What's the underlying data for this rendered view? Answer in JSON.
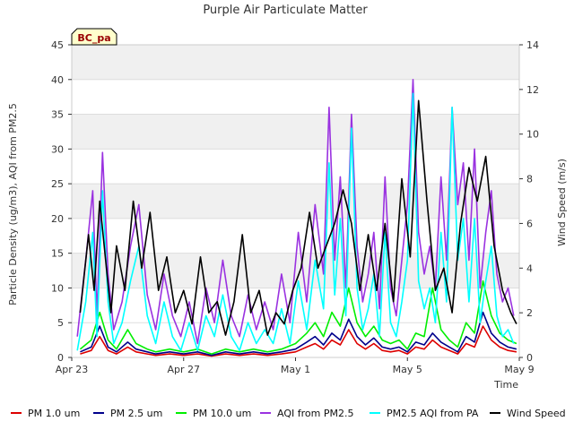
{
  "chart_data": {
    "type": "line",
    "title": "Purple Air Particulate Matter",
    "xlabel": "Time",
    "ylabel": "Particle Density (ug/m3), AQI from PM2.5",
    "y2label": "Wind Speed (m/s)",
    "badge": "BC_pa",
    "xlim": [
      0,
      16
    ],
    "ylim": [
      0,
      45
    ],
    "y2lim": [
      0,
      14
    ],
    "x_ticks": [
      {
        "value": 0,
        "label": "Apr 23"
      },
      {
        "value": 4,
        "label": "Apr 27"
      },
      {
        "value": 8,
        "label": "May 1"
      },
      {
        "value": 12,
        "label": "May 5"
      },
      {
        "value": 16,
        "label": "May 9"
      }
    ],
    "y_ticks": [
      0,
      5,
      10,
      15,
      20,
      25,
      30,
      35,
      40,
      45
    ],
    "y2_ticks": [
      0,
      2,
      4,
      6,
      8,
      10,
      12,
      14
    ],
    "shaded_bands": [
      [
        10,
        15
      ],
      [
        20,
        25
      ],
      [
        30,
        35
      ],
      [
        40,
        45
      ]
    ],
    "series": [
      {
        "name": "PM 1.0 um",
        "axis": "left",
        "color": "#dd0000",
        "x": [
          0.3,
          0.7,
          1.0,
          1.3,
          1.6,
          2.0,
          2.3,
          2.7,
          3.0,
          3.5,
          4.0,
          4.5,
          5.0,
          5.5,
          6.0,
          6.5,
          7.0,
          7.5,
          8.0,
          8.4,
          8.7,
          9.0,
          9.3,
          9.6,
          9.9,
          10.2,
          10.5,
          10.8,
          11.1,
          11.4,
          11.7,
          12.0,
          12.3,
          12.6,
          12.9,
          13.2,
          13.5,
          13.8,
          14.1,
          14.4,
          14.7,
          15.0,
          15.3,
          15.6,
          15.9
        ],
        "y": [
          0.5,
          1.0,
          3.0,
          1.0,
          0.5,
          1.5,
          0.8,
          0.5,
          0.3,
          0.5,
          0.3,
          0.5,
          0.2,
          0.5,
          0.3,
          0.5,
          0.3,
          0.5,
          0.8,
          1.5,
          2.0,
          1.2,
          2.5,
          1.8,
          4.0,
          2.0,
          1.2,
          2.0,
          1.0,
          0.8,
          1.0,
          0.5,
          1.5,
          1.2,
          2.5,
          1.5,
          1.0,
          0.5,
          2.0,
          1.5,
          4.5,
          2.5,
          1.5,
          1.0,
          0.8
        ]
      },
      {
        "name": "PM 2.5 um",
        "axis": "left",
        "color": "#00008b",
        "x": [
          0.3,
          0.7,
          1.0,
          1.3,
          1.6,
          2.0,
          2.3,
          2.7,
          3.0,
          3.5,
          4.0,
          4.5,
          5.0,
          5.5,
          6.0,
          6.5,
          7.0,
          7.5,
          8.0,
          8.4,
          8.7,
          9.0,
          9.3,
          9.6,
          9.9,
          10.2,
          10.5,
          10.8,
          11.1,
          11.4,
          11.7,
          12.0,
          12.3,
          12.6,
          12.9,
          13.2,
          13.5,
          13.8,
          14.1,
          14.4,
          14.7,
          15.0,
          15.3,
          15.6,
          15.9
        ],
        "y": [
          0.8,
          1.5,
          4.5,
          1.5,
          0.8,
          2.2,
          1.2,
          0.8,
          0.5,
          0.8,
          0.5,
          0.8,
          0.3,
          0.8,
          0.5,
          0.8,
          0.5,
          0.8,
          1.2,
          2.2,
          3.0,
          1.8,
          3.5,
          2.5,
          5.5,
          3.0,
          1.8,
          2.8,
          1.5,
          1.2,
          1.5,
          0.8,
          2.2,
          1.8,
          3.5,
          2.2,
          1.5,
          0.8,
          3.0,
          2.2,
          6.5,
          3.5,
          2.2,
          1.5,
          1.2
        ]
      },
      {
        "name": "PM 10.0 um",
        "axis": "left",
        "color": "#00ee00",
        "x": [
          0.3,
          0.7,
          1.0,
          1.3,
          1.6,
          2.0,
          2.3,
          2.7,
          3.0,
          3.5,
          4.0,
          4.5,
          5.0,
          5.5,
          6.0,
          6.5,
          7.0,
          7.5,
          8.0,
          8.4,
          8.7,
          9.0,
          9.3,
          9.6,
          9.9,
          10.2,
          10.5,
          10.8,
          11.1,
          11.4,
          11.7,
          12.0,
          12.3,
          12.6,
          12.9,
          13.2,
          13.5,
          13.8,
          14.1,
          14.4,
          14.7,
          15.0,
          15.3,
          15.6,
          15.9
        ],
        "y": [
          1.2,
          2.5,
          6.5,
          2.5,
          1.2,
          4.0,
          2.0,
          1.2,
          0.8,
          1.2,
          0.8,
          1.2,
          0.5,
          1.2,
          0.8,
          1.2,
          0.8,
          1.2,
          2.0,
          3.5,
          5.0,
          3.0,
          6.5,
          4.5,
          10.0,
          5.0,
          3.0,
          4.5,
          2.5,
          2.0,
          2.5,
          1.2,
          3.5,
          3.0,
          10.0,
          4.0,
          2.5,
          1.5,
          5.0,
          3.5,
          11.0,
          6.0,
          3.5,
          2.5,
          2.0
        ]
      },
      {
        "name": "AQI from PM2.5",
        "axis": "left",
        "color": "#9a32e0",
        "x": [
          0.2,
          0.5,
          0.75,
          0.9,
          1.1,
          1.3,
          1.5,
          1.8,
          2.1,
          2.4,
          2.7,
          3.0,
          3.3,
          3.6,
          3.9,
          4.2,
          4.5,
          4.8,
          5.1,
          5.4,
          5.7,
          6.0,
          6.3,
          6.6,
          6.9,
          7.2,
          7.5,
          7.8,
          8.1,
          8.4,
          8.7,
          9.0,
          9.2,
          9.4,
          9.6,
          9.8,
          10.0,
          10.2,
          10.4,
          10.6,
          10.8,
          11.0,
          11.2,
          11.4,
          11.6,
          11.8,
          12.0,
          12.2,
          12.4,
          12.6,
          12.8,
          13.0,
          13.2,
          13.4,
          13.6,
          13.8,
          14.0,
          14.2,
          14.4,
          14.6,
          14.8,
          15.0,
          15.2,
          15.4,
          15.6,
          15.8
        ],
        "y": [
          3,
          14,
          24,
          6,
          29.5,
          12,
          4,
          8,
          16,
          22,
          9,
          4,
          12,
          6,
          3,
          8,
          2,
          10,
          5,
          14,
          6,
          3,
          9,
          4,
          8,
          4,
          12,
          5,
          18,
          8,
          22,
          12,
          36,
          14,
          26,
          10,
          35,
          16,
          8,
          12,
          18,
          7,
          26,
          10,
          6,
          14,
          22,
          40,
          18,
          12,
          16,
          10,
          26,
          14,
          36,
          22,
          28,
          14,
          30,
          10,
          18,
          24,
          12,
          8,
          10,
          6
        ]
      },
      {
        "name": "PM2.5 AQI from PA",
        "axis": "left",
        "color": "#00ffff",
        "x": [
          0.2,
          0.5,
          0.75,
          0.9,
          1.1,
          1.3,
          1.5,
          1.8,
          2.1,
          2.4,
          2.7,
          3.0,
          3.3,
          3.6,
          3.9,
          4.2,
          4.5,
          4.8,
          5.1,
          5.4,
          5.7,
          6.0,
          6.3,
          6.6,
          6.9,
          7.2,
          7.5,
          7.8,
          8.1,
          8.4,
          8.7,
          9.0,
          9.2,
          9.4,
          9.6,
          9.8,
          10.0,
          10.2,
          10.4,
          10.6,
          10.8,
          11.0,
          11.2,
          11.4,
          11.6,
          11.8,
          12.0,
          12.2,
          12.4,
          12.6,
          12.8,
          13.0,
          13.2,
          13.4,
          13.6,
          13.8,
          14.0,
          14.2,
          14.4,
          14.6,
          14.8,
          15.0,
          15.2,
          15.4,
          15.6,
          15.8
        ],
        "y": [
          1,
          8,
          18,
          3,
          24,
          8,
          2,
          5,
          11,
          16,
          6,
          2,
          8,
          3,
          1,
          5,
          1,
          6,
          3,
          9,
          3,
          1,
          5,
          2,
          4,
          2,
          7,
          2,
          11,
          4,
          14,
          7,
          28,
          9,
          20,
          6,
          33,
          10,
          4,
          7,
          12,
          3,
          18,
          5,
          3,
          8,
          14,
          38,
          11,
          7,
          10,
          5,
          18,
          8,
          36,
          14,
          20,
          8,
          20,
          5,
          11,
          16,
          6,
          3,
          4,
          2
        ]
      },
      {
        "name": "Wind Speed",
        "axis": "right",
        "color": "#000000",
        "x": [
          0.3,
          0.6,
          0.8,
          1.0,
          1.2,
          1.4,
          1.6,
          1.9,
          2.2,
          2.5,
          2.8,
          3.1,
          3.4,
          3.7,
          4.0,
          4.3,
          4.6,
          4.9,
          5.2,
          5.5,
          5.8,
          6.1,
          6.4,
          6.7,
          7.0,
          7.3,
          7.6,
          7.9,
          8.2,
          8.5,
          8.8,
          9.1,
          9.4,
          9.7,
          10.0,
          10.3,
          10.6,
          10.9,
          11.2,
          11.5,
          11.8,
          12.1,
          12.4,
          12.7,
          13.0,
          13.3,
          13.6,
          13.9,
          14.2,
          14.5,
          14.8,
          15.1,
          15.4,
          15.7,
          15.9
        ],
        "y": [
          2,
          5.5,
          3,
          7,
          4.5,
          2,
          5,
          3,
          7,
          4,
          6.5,
          3,
          4.5,
          2,
          3,
          1.5,
          4.5,
          2,
          2.5,
          1,
          2.5,
          5.5,
          2,
          3,
          1,
          2,
          1.5,
          3,
          4,
          6.5,
          4,
          5,
          6,
          7.5,
          6,
          3,
          5.5,
          3,
          6,
          2.5,
          8,
          4.5,
          11.5,
          7,
          3,
          4,
          2,
          6,
          8.5,
          7,
          9,
          5,
          3,
          2,
          1.5
        ]
      }
    ]
  }
}
